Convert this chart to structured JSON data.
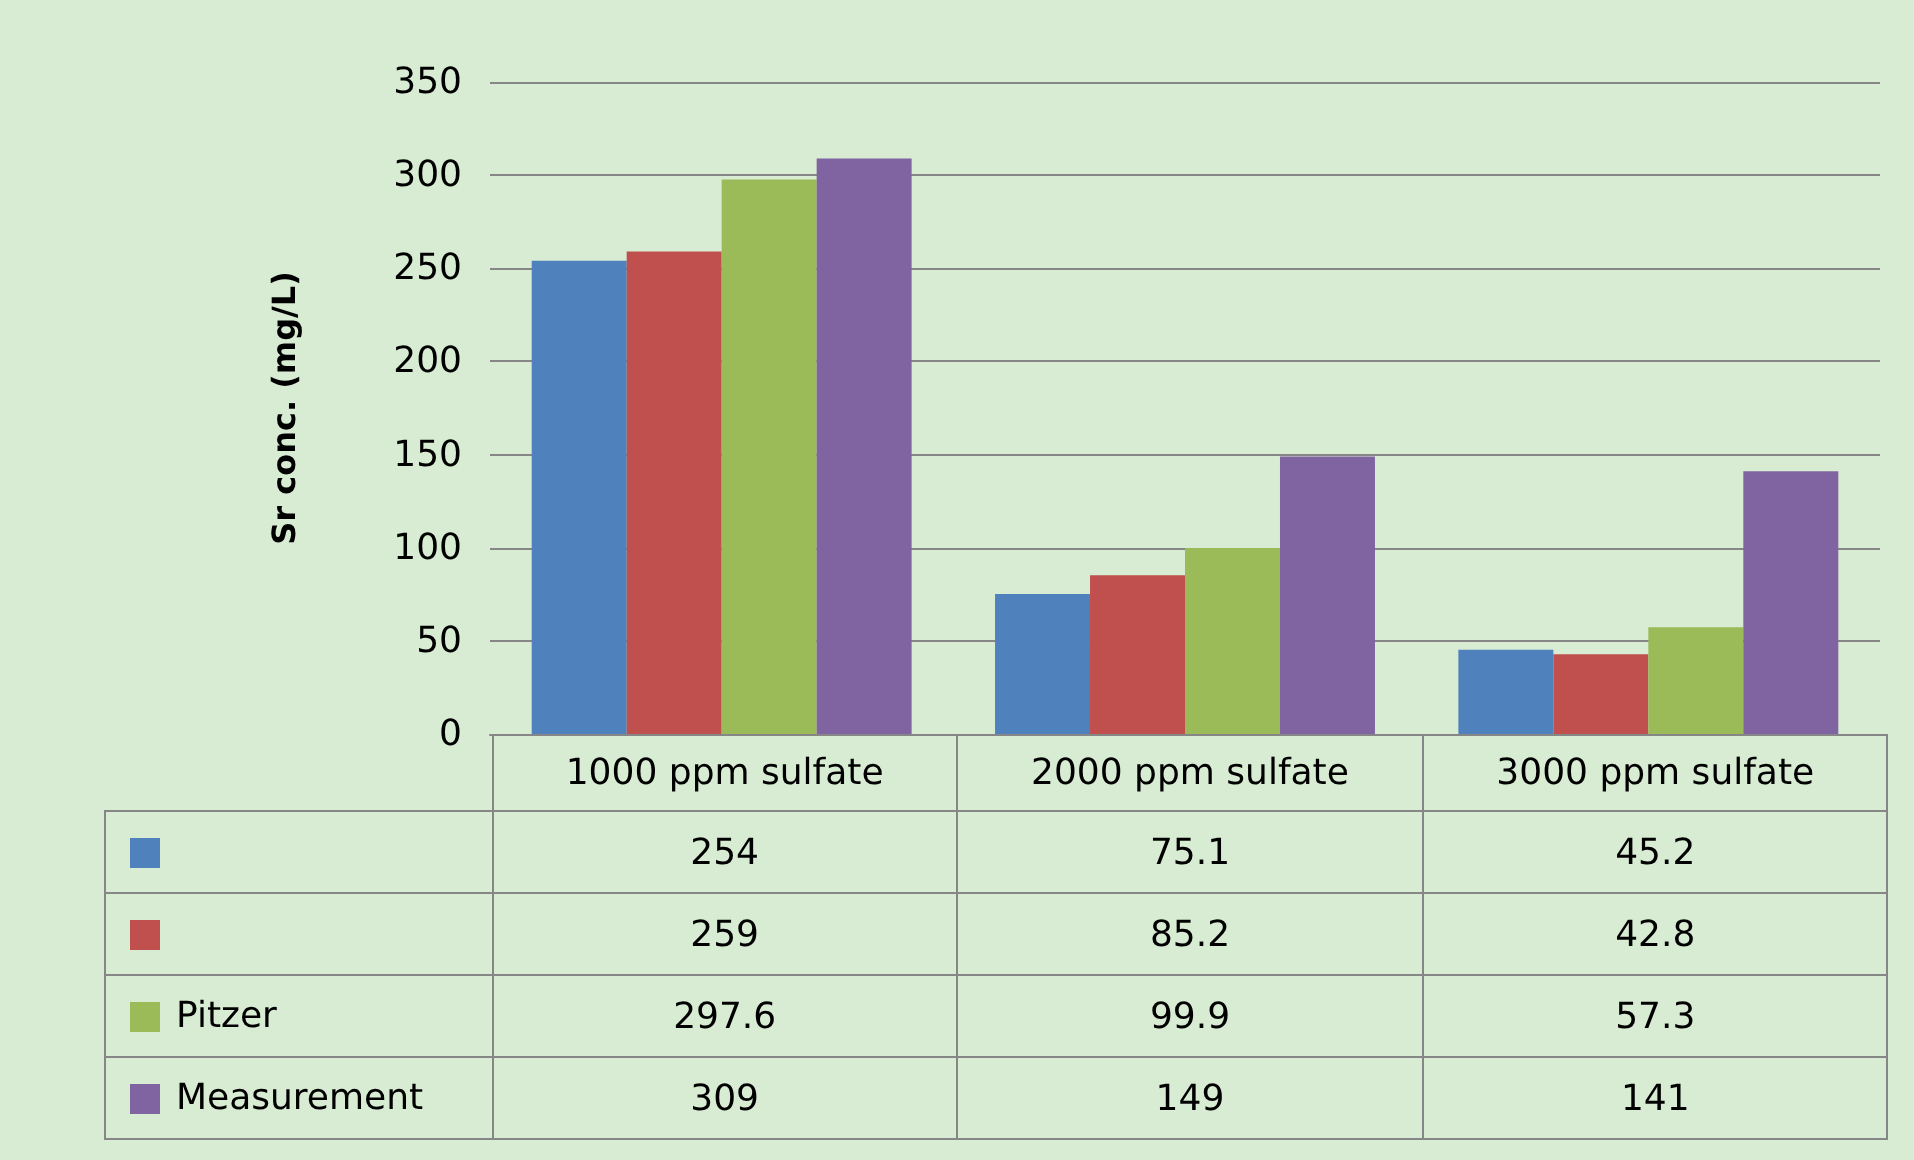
{
  "chart_data": {
    "type": "bar",
    "ylabel": "Sr conc. (mg/L)",
    "categories": [
      "1000 ppm sulfate",
      "2000 ppm sulfate",
      "3000 ppm sulfate"
    ],
    "series": [
      {
        "color": "#4f81bd",
        "values": [
          254,
          75.1,
          45.2
        ]
      },
      {
        "color": "#c0504d",
        "values": [
          259,
          85.2,
          42.8
        ]
      },
      {
        "name": "Pitzer",
        "color": "#9bbb59",
        "values": [
          297.6,
          99.9,
          57.3
        ]
      },
      {
        "name": "Measurement",
        "color": "#8064a2",
        "values": [
          309,
          149,
          141
        ]
      }
    ],
    "ylim": [
      0,
      350
    ],
    "yticks": [
      0,
      50,
      100,
      150,
      200,
      250,
      300,
      350
    ],
    "grid": "y",
    "legend": "bottom",
    "data_labels": true
  }
}
